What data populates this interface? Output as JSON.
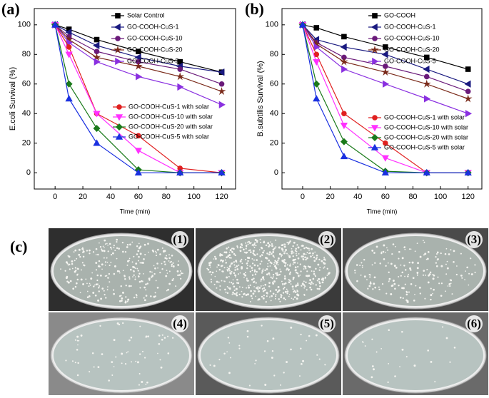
{
  "chart_data": [
    {
      "type": "line",
      "panel_label": "(a)",
      "xlabel": "Time (min)",
      "ylabel": "E.coli Survival (%)",
      "x": [
        0,
        10,
        30,
        60,
        90,
        120
      ],
      "xlim": [
        -15,
        130
      ],
      "xticks": [
        0,
        20,
        40,
        60,
        80,
        100,
        120
      ],
      "ylim": [
        -11,
        111
      ],
      "yticks": [
        0,
        20,
        40,
        60,
        80,
        100
      ],
      "series": [
        {
          "name": "Solar Control",
          "color": "#000000",
          "marker": "square",
          "values": [
            100,
            97,
            90,
            82,
            75,
            68
          ]
        },
        {
          "name": "GO-COOH-CuS-1",
          "color": "#1a1a80",
          "marker": "triangle-left",
          "values": [
            100,
            95,
            86,
            78,
            72,
            68
          ]
        },
        {
          "name": "GO-COOH-CuS-10",
          "color": "#6a1a7a",
          "marker": "circle",
          "values": [
            100,
            92,
            82,
            75,
            70,
            60
          ]
        },
        {
          "name": "GO-COOH-CuS-20",
          "color": "#7a2a1a",
          "marker": "star",
          "values": [
            100,
            90,
            78,
            72,
            65,
            55
          ]
        },
        {
          "name": "GO-COOH-CuS-5",
          "color": "#8a30e0",
          "marker": "triangle-right",
          "values": [
            100,
            88,
            75,
            65,
            58,
            46
          ]
        },
        {
          "name": "GO-COOH-CuS-1 with solar",
          "color": "#e02020",
          "marker": "circle",
          "values": [
            100,
            85,
            40,
            25,
            3,
            0
          ]
        },
        {
          "name": "GO-COOH-CuS-10 with solar",
          "color": "#ff30ff",
          "marker": "triangle-down",
          "values": [
            100,
            80,
            40,
            15,
            0,
            0
          ]
        },
        {
          "name": "GO-COOH-CuS-20 with solar",
          "color": "#1a7a1a",
          "marker": "diamond",
          "values": [
            100,
            60,
            30,
            2,
            0,
            0
          ]
        },
        {
          "name": "GO-COOH-CuS-5 with solar",
          "color": "#1a30e0",
          "marker": "triangle-up",
          "values": [
            100,
            50,
            20,
            0,
            0,
            0
          ]
        }
      ]
    },
    {
      "type": "line",
      "panel_label": "(b)",
      "xlabel": "Time (min)",
      "ylabel": "B.subtilis Survival (%)",
      "x": [
        0,
        10,
        30,
        60,
        90,
        120
      ],
      "xlim": [
        -15,
        130
      ],
      "xticks": [
        0,
        20,
        40,
        60,
        80,
        100,
        120
      ],
      "ylim": [
        -11,
        111
      ],
      "yticks": [
        0,
        20,
        40,
        60,
        80,
        100
      ],
      "series": [
        {
          "name": "GO-COOH",
          "color": "#000000",
          "marker": "square",
          "values": [
            100,
            98,
            92,
            85,
            78,
            70
          ]
        },
        {
          "name": "GO-COOH-CuS-1",
          "color": "#1a1a80",
          "marker": "triangle-left",
          "values": [
            100,
            90,
            85,
            80,
            70,
            60
          ]
        },
        {
          "name": "GO-COOH-CuS-10",
          "color": "#6a1a7a",
          "marker": "circle",
          "values": [
            100,
            88,
            78,
            72,
            65,
            55
          ]
        },
        {
          "name": "GO-COOH-CuS-20",
          "color": "#7a2a1a",
          "marker": "star",
          "values": [
            100,
            87,
            75,
            68,
            60,
            50
          ]
        },
        {
          "name": "GO-COOH-CuS-5",
          "color": "#8a30e0",
          "marker": "triangle-right",
          "values": [
            100,
            85,
            70,
            60,
            50,
            40
          ]
        },
        {
          "name": "GO-COOH-CuS-1 with solar",
          "color": "#e02020",
          "marker": "circle",
          "values": [
            100,
            80,
            40,
            20,
            0,
            0
          ]
        },
        {
          "name": "GO-COOH-CuS-10 with solar",
          "color": "#ff30ff",
          "marker": "triangle-down",
          "values": [
            100,
            75,
            32,
            10,
            0,
            0
          ]
        },
        {
          "name": "GO-COOH-CuS-20 with solar",
          "color": "#1a7a1a",
          "marker": "diamond",
          "values": [
            100,
            60,
            21,
            1,
            0,
            0
          ]
        },
        {
          "name": "GO-COOH-CuS-5 with solar",
          "color": "#1a30e0",
          "marker": "triangle-up",
          "values": [
            100,
            50,
            11,
            0,
            0,
            0
          ]
        }
      ]
    }
  ],
  "photo_panel": {
    "panel_label": "(c)",
    "plates": [
      "(1)",
      "(2)",
      "(3)",
      "(4)",
      "(5)",
      "(6)"
    ]
  }
}
